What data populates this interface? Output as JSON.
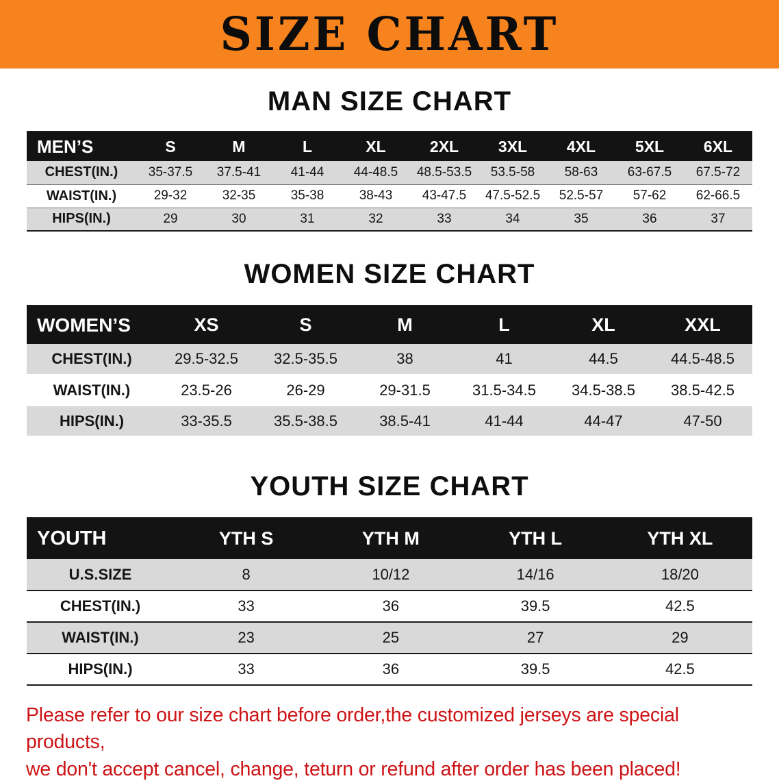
{
  "banner": {
    "title": "SIZE CHART"
  },
  "tables": [
    {
      "id": "men",
      "heading": "MAN SIZE CHART",
      "header": [
        "MEN’S",
        "S",
        "M",
        "L",
        "XL",
        "2XL",
        "3XL",
        "4XL",
        "5XL",
        "6XL"
      ],
      "rows": [
        [
          "CHEST(IN.)",
          "35-37.5",
          "37.5-41",
          "41-44",
          "44-48.5",
          "48.5-53.5",
          "53.5-58",
          "58-63",
          "63-67.5",
          "67.5-72"
        ],
        [
          "WAIST(IN.)",
          "29-32",
          "32-35",
          "35-38",
          "38-43",
          "43-47.5",
          "47.5-52.5",
          "52.5-57",
          "57-62",
          "62-66.5"
        ],
        [
          "HIPS(IN.)",
          "29",
          "30",
          "31",
          "32",
          "33",
          "34",
          "35",
          "36",
          "37"
        ]
      ]
    },
    {
      "id": "women",
      "heading": "WOMEN SIZE CHART",
      "header": [
        "WOMEN’S",
        "XS",
        "S",
        "M",
        "L",
        "XL",
        "XXL"
      ],
      "rows": [
        [
          "CHEST(IN.)",
          "29.5-32.5",
          "32.5-35.5",
          "38",
          "41",
          "44.5",
          "44.5-48.5"
        ],
        [
          "WAIST(IN.)",
          "23.5-26",
          "26-29",
          "29-31.5",
          "31.5-34.5",
          "34.5-38.5",
          "38.5-42.5"
        ],
        [
          "HIPS(IN.)",
          "33-35.5",
          "35.5-38.5",
          "38.5-41",
          "41-44",
          "44-47",
          "47-50"
        ]
      ]
    },
    {
      "id": "youth",
      "heading": "YOUTH SIZE CHART",
      "header": [
        "YOUTH",
        "YTH S",
        "YTH M",
        "YTH L",
        "YTH XL"
      ],
      "rows": [
        [
          "U.S.SIZE",
          "8",
          "10/12",
          "14/16",
          "18/20"
        ],
        [
          "CHEST(IN.)",
          "33",
          "36",
          "39.5",
          "42.5"
        ],
        [
          "WAIST(IN.)",
          "23",
          "25",
          "27",
          "29"
        ],
        [
          "HIPS(IN.)",
          "33",
          "36",
          "39.5",
          "42.5"
        ]
      ]
    }
  ],
  "disclaimer": {
    "line1": "Please refer to our size chart before order,the customized jerseys are special products,",
    "line2": "we don't accept cancel, change, teturn or refund after order has been placed!"
  },
  "colors": {
    "banner_bg": "#f6831d",
    "header_bg": "#131313",
    "row_alt_bg": "#d9d9d9",
    "disclaimer_color": "#cd1416"
  }
}
